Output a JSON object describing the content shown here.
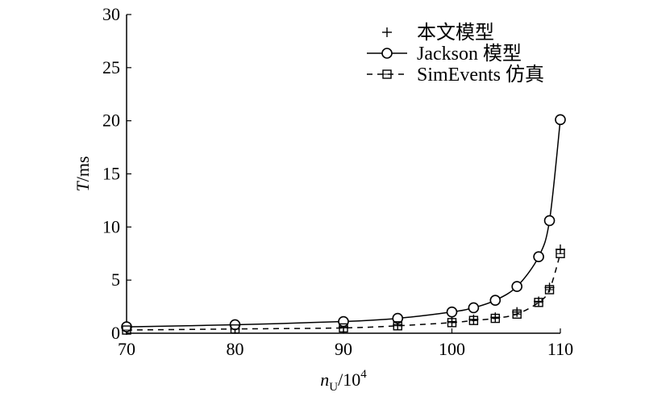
{
  "chart_data": {
    "type": "line",
    "title": "",
    "xlabel": {
      "main": "n",
      "sub": "U",
      "rest": "/10",
      "sup": "4"
    },
    "ylabel": {
      "italic": "T",
      "rest": "/ms"
    },
    "xlim": [
      70,
      110
    ],
    "ylim": [
      0,
      30
    ],
    "xticks": [
      70,
      80,
      90,
      100,
      110
    ],
    "yticks": [
      0,
      5,
      10,
      15,
      20,
      25,
      30
    ],
    "grid": false,
    "legend_position": "top-right",
    "series": [
      {
        "name": "本文模型",
        "line": "none",
        "marker": "plus",
        "x": [
          70,
          80,
          90,
          95,
          100,
          102,
          104,
          106,
          108,
          109,
          110
        ],
        "y": [
          0.3,
          0.4,
          0.6,
          0.8,
          1.1,
          1.3,
          1.5,
          2.0,
          3.0,
          4.3,
          7.9
        ]
      },
      {
        "name": "Jackson 模型",
        "line": "solid",
        "marker": "circle",
        "x": [
          70,
          80,
          90,
          95,
          100,
          102,
          104,
          106,
          108,
          109,
          110
        ],
        "y": [
          0.6,
          0.8,
          1.1,
          1.4,
          2.0,
          2.4,
          3.1,
          4.4,
          7.2,
          10.6,
          20.1
        ]
      },
      {
        "name": "SimEvents 仿真",
        "line": "dashed",
        "marker": "square",
        "x": [
          70,
          80,
          90,
          95,
          100,
          102,
          104,
          106,
          108,
          109,
          110
        ],
        "y": [
          0.3,
          0.4,
          0.5,
          0.7,
          1.0,
          1.2,
          1.4,
          1.8,
          2.9,
          4.1,
          7.5
        ]
      }
    ]
  }
}
